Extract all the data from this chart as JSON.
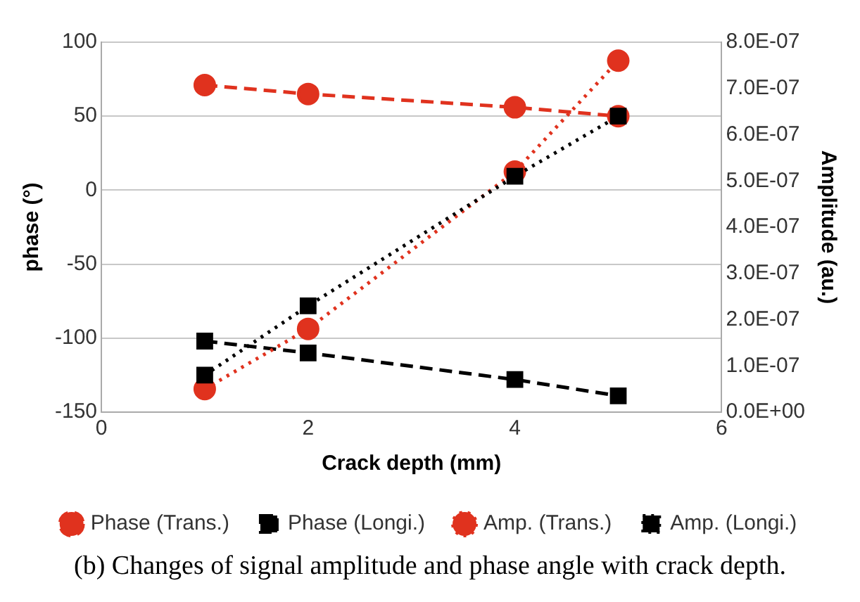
{
  "chart_data": {
    "type": "line",
    "xlabel": "Crack depth (mm)",
    "ylabel": "phase (°)",
    "y2label": "Amplitude (au.)",
    "annotations": [
      "(b) Changes of signal amplitude and phase angle with crack depth."
    ],
    "x": [
      1,
      2,
      4,
      5
    ],
    "xlim": [
      0,
      6
    ],
    "xticks": [
      0,
      2,
      4,
      6
    ],
    "ylim": [
      -150,
      100
    ],
    "yticks": [
      -150,
      -100,
      -50,
      0,
      50,
      100
    ],
    "y2lim": [
      0,
      8e-07
    ],
    "y2ticks": [
      {
        "value": 0,
        "label": "0.0E+00"
      },
      {
        "value": 1e-07,
        "label": "1.0E-07"
      },
      {
        "value": 2e-07,
        "label": "2.0E-07"
      },
      {
        "value": 3e-07,
        "label": "3.0E-07"
      },
      {
        "value": 4e-07,
        "label": "4.0E-07"
      },
      {
        "value": 5e-07,
        "label": "5.0E-07"
      },
      {
        "value": 6e-07,
        "label": "6.0E-07"
      },
      {
        "value": 7e-07,
        "label": "7.0E-07"
      },
      {
        "value": 8e-07,
        "label": "8.0E-07"
      }
    ],
    "grid": "y",
    "legend": "bottom",
    "series": [
      {
        "name": "Phase (Trans.)",
        "color": "#e0321e",
        "values": [
          71,
          65,
          56,
          50
        ],
        "marker": "circle",
        "line_style": "dashed"
      },
      {
        "name": "Phase (Longi.)",
        "color": "#000000",
        "values": [
          -102,
          -110,
          -128,
          -139
        ],
        "marker": "square",
        "line_style": "dashed"
      },
      {
        "name": "Amp. (Trans.)",
        "color": "#e0321e",
        "values": [
          5e-08,
          1.8e-07,
          5.2e-07,
          7.6e-07
        ],
        "marker": "circle",
        "line_style": "dotted",
        "axis": "y2"
      },
      {
        "name": "Amp. (Longi.)",
        "color": "#000000",
        "values": [
          8e-08,
          2.3e-07,
          5.1e-07,
          6.4e-07
        ],
        "marker": "square",
        "line_style": "dotted",
        "axis": "y2"
      }
    ]
  }
}
